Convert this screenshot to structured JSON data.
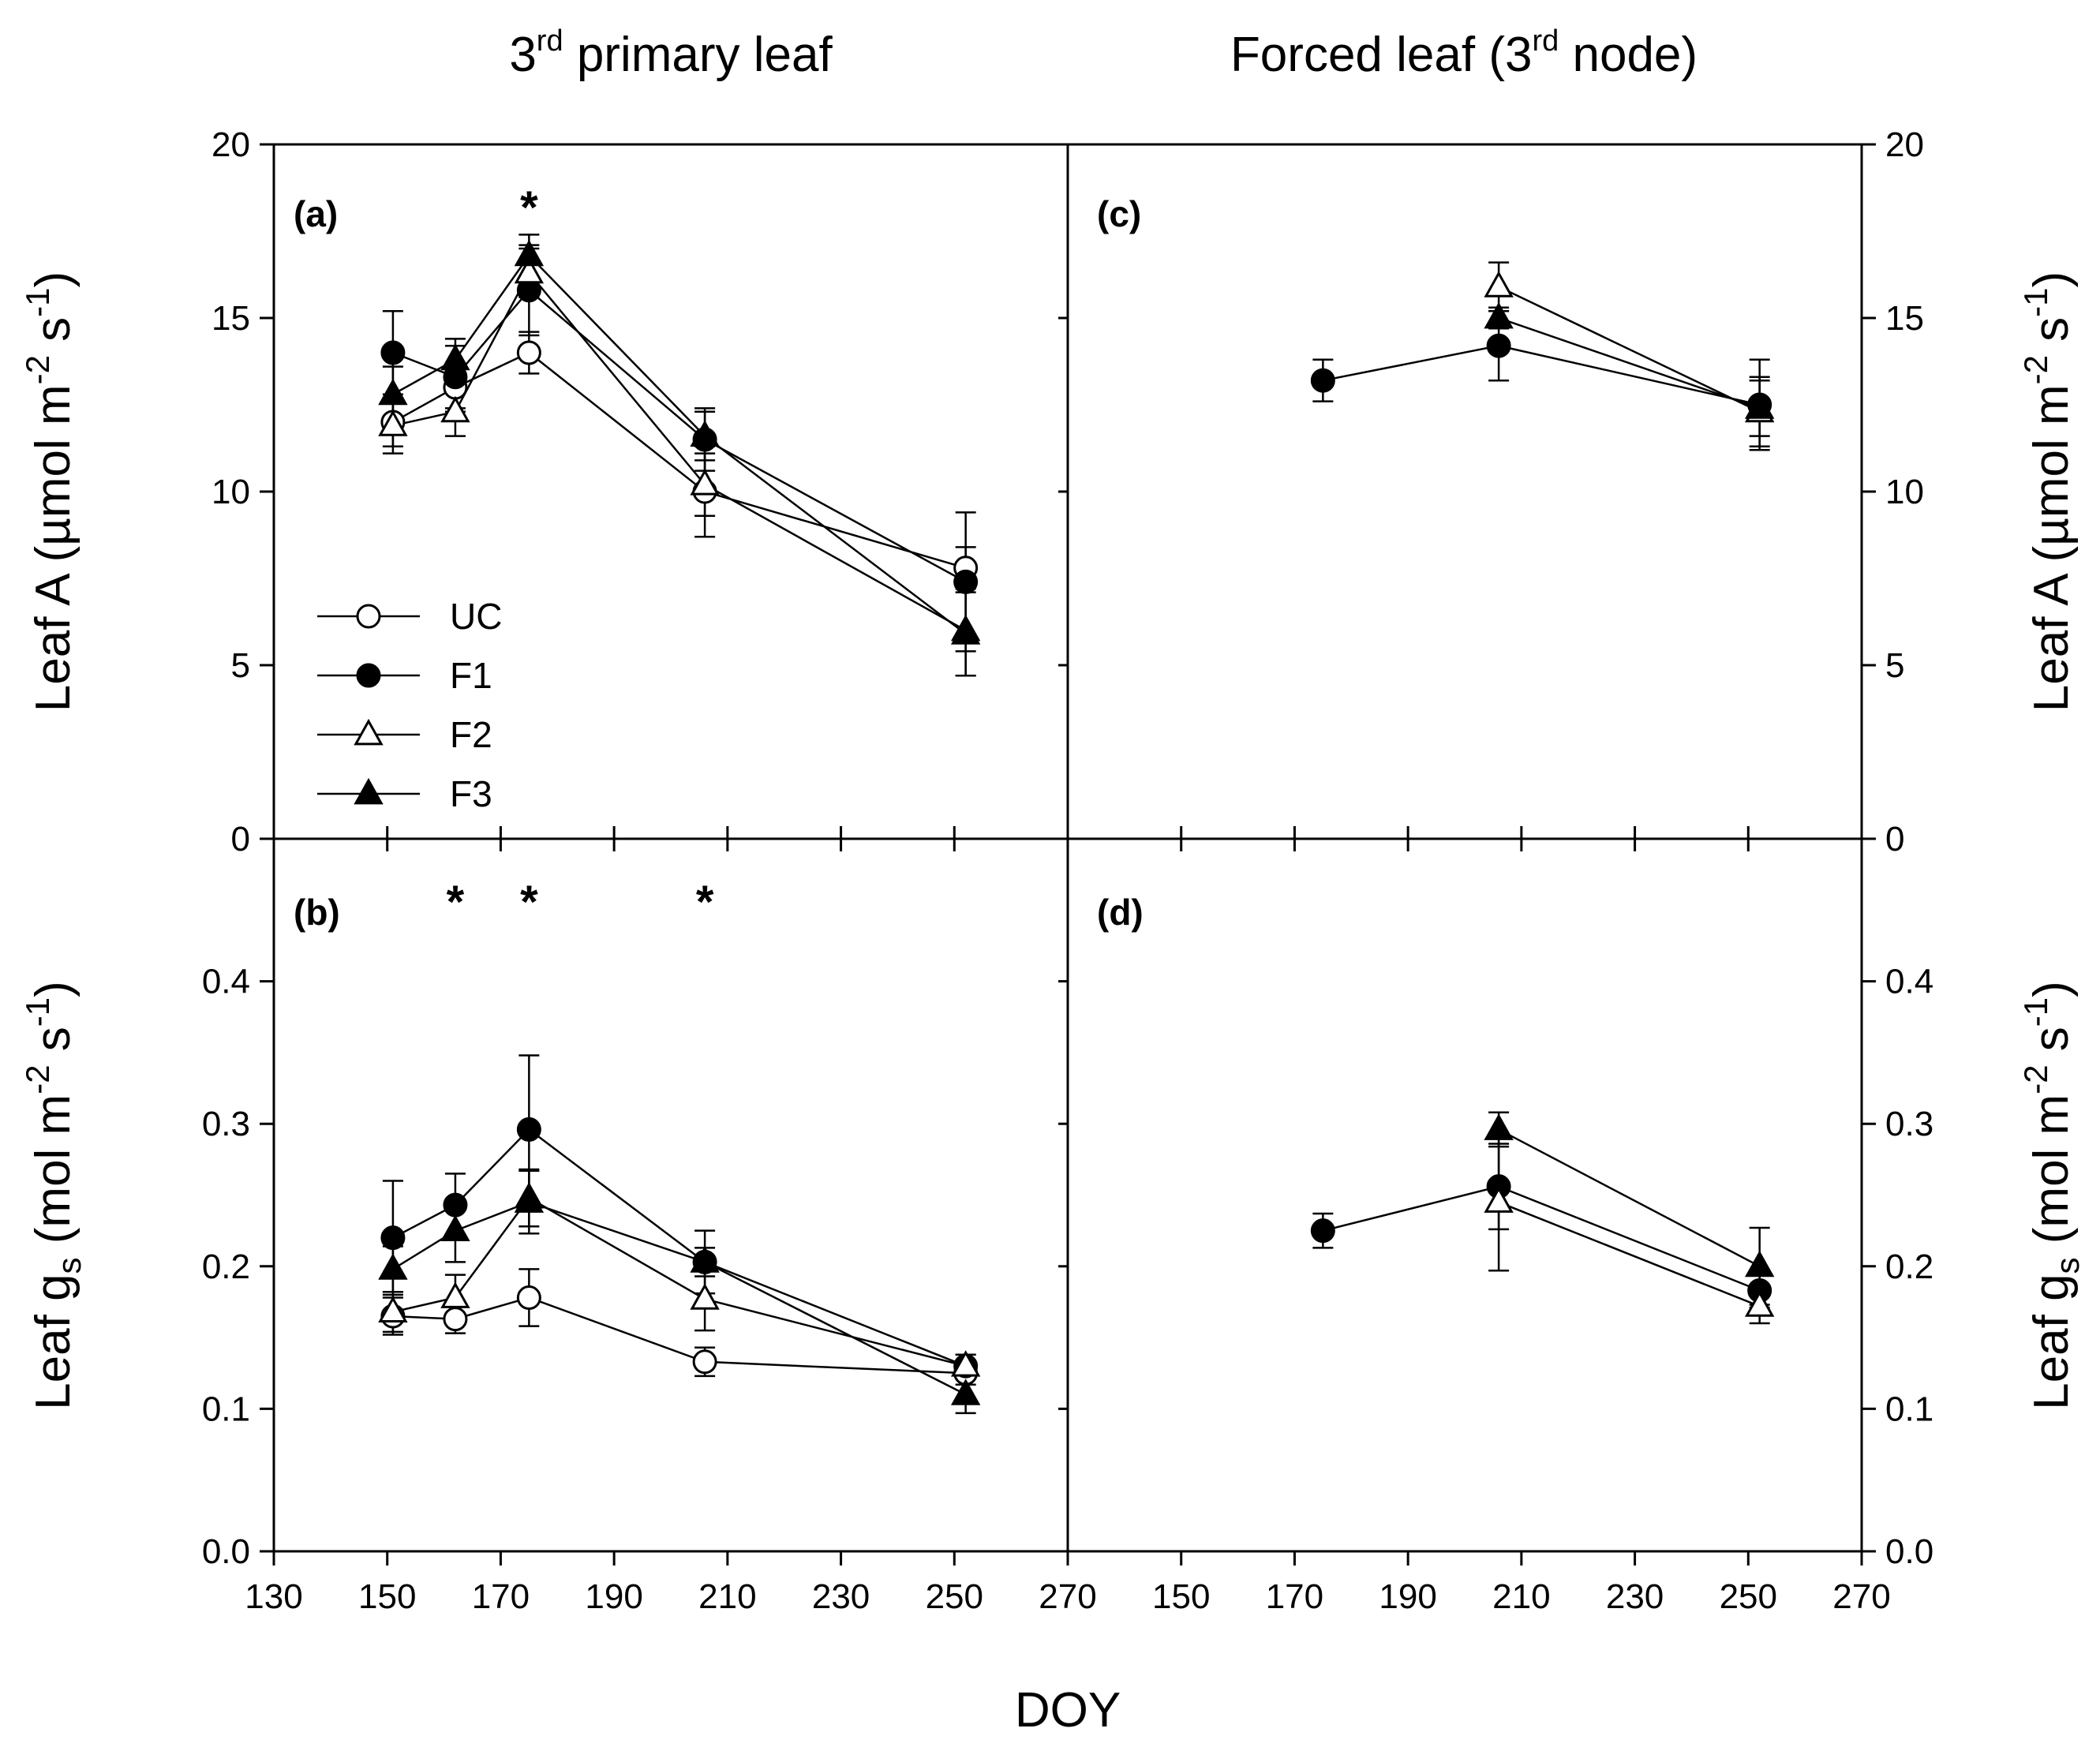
{
  "column_titles": {
    "left": {
      "pre": "3",
      "sup": "rd",
      "post": " primary leaf"
    },
    "right": {
      "pre": "Forced leaf (3",
      "sup": "rd",
      "post": " node)"
    }
  },
  "x_axis": {
    "label": "DOY",
    "left_ticks": [
      130,
      150,
      170,
      190,
      210,
      230,
      250,
      270
    ],
    "right_ticks": [
      150,
      170,
      190,
      210,
      230,
      250,
      270
    ],
    "range_left": [
      130,
      270
    ],
    "range_right": [
      130,
      270
    ]
  },
  "y_axis_A": {
    "label_pre": "Leaf A (µmol m",
    "sup1": "-2",
    "mid": " s",
    "sup2": "-1",
    "post": ")",
    "ticks": [
      "0",
      "5",
      "10",
      "15",
      "20"
    ],
    "range": [
      0,
      20
    ]
  },
  "y_axis_gs": {
    "label_pre": "Leaf g",
    "sub": "s",
    "mid1": " (mol m",
    "sup1": "-2",
    "mid2": " s",
    "sup2": "-1",
    "post": ")",
    "ticks": [
      "0.0",
      "0.1",
      "0.2",
      "0.3",
      "0.4"
    ],
    "range": [
      0,
      0.5
    ]
  },
  "legend": [
    {
      "name": "UC",
      "marker": "circle",
      "fill": "#ffffff"
    },
    {
      "name": "F1",
      "marker": "circle",
      "fill": "#000000"
    },
    {
      "name": "F2",
      "marker": "triangle",
      "fill": "#ffffff"
    },
    {
      "name": "F3",
      "marker": "triangle",
      "fill": "#000000"
    }
  ],
  "chart_data": [
    {
      "panel": "(a)",
      "type": "line",
      "xlabel": "DOY",
      "ylabel": "Leaf A",
      "xlim": [
        130,
        270
      ],
      "ylim": [
        0,
        20
      ],
      "significance_x": [
        175
      ],
      "series": [
        {
          "name": "UC",
          "x": [
            151,
            162,
            175,
            206,
            252
          ],
          "y": [
            12.0,
            13.0,
            14.0,
            10.0,
            7.8
          ],
          "err": [
            0.7,
            0.7,
            0.6,
            1.3,
            0.6
          ]
        },
        {
          "name": "F1",
          "x": [
            151,
            162,
            175,
            206,
            252
          ],
          "y": [
            14.0,
            13.3,
            15.8,
            11.5,
            7.4
          ],
          "err": [
            1.2,
            0.9,
            1.3,
            0.9,
            2.0
          ]
        },
        {
          "name": "F2",
          "x": [
            151,
            162,
            175,
            206,
            252
          ],
          "y": [
            11.9,
            12.3,
            16.3,
            10.2,
            6.0
          ],
          "err": [
            0.8,
            0.7,
            0.7,
            0.9,
            1.3
          ]
        },
        {
          "name": "F3",
          "x": [
            151,
            162,
            175,
            206,
            252
          ],
          "y": [
            12.8,
            13.8,
            16.8,
            11.6,
            5.9
          ],
          "err": [
            0.8,
            0.6,
            0.6,
            0.7,
            1.2
          ]
        }
      ]
    },
    {
      "panel": "(b)",
      "type": "line",
      "xlabel": "DOY",
      "ylabel": "Leaf gs",
      "xlim": [
        130,
        270
      ],
      "ylim": [
        0,
        0.5
      ],
      "significance_x": [
        162,
        175,
        206
      ],
      "series": [
        {
          "name": "UC",
          "x": [
            151,
            162,
            175,
            206,
            252
          ],
          "y": [
            0.165,
            0.163,
            0.178,
            0.133,
            0.125
          ],
          "err": [
            0.013,
            0.01,
            0.02,
            0.01,
            0.008
          ]
        },
        {
          "name": "F1",
          "x": [
            151,
            162,
            175,
            206,
            252
          ],
          "y": [
            0.22,
            0.243,
            0.296,
            0.203,
            0.13
          ],
          "err": [
            0.04,
            0.022,
            0.052,
            0.022,
            0.008
          ]
        },
        {
          "name": "F2",
          "x": [
            151,
            162,
            175,
            206,
            252
          ],
          "y": [
            0.168,
            0.178,
            0.248,
            0.177,
            0.13
          ],
          "err": [
            0.014,
            0.016,
            0.02,
            0.022,
            0.008
          ]
        },
        {
          "name": "F3",
          "x": [
            151,
            162,
            175,
            206,
            252
          ],
          "y": [
            0.198,
            0.225,
            0.245,
            0.203,
            0.11
          ],
          "err": [
            0.016,
            0.022,
            0.022,
            0.01,
            0.013
          ]
        }
      ]
    },
    {
      "panel": "(c)",
      "type": "line",
      "xlabel": "DOY",
      "ylabel": "Leaf A",
      "xlim": [
        130,
        270
      ],
      "ylim": [
        0,
        20
      ],
      "significance_x": [],
      "series": [
        {
          "name": "F1",
          "x": [
            175,
            206,
            252
          ],
          "y": [
            13.2,
            14.2,
            12.5
          ],
          "err": [
            0.6,
            1.0,
            1.3
          ]
        },
        {
          "name": "F2",
          "x": [
            206,
            252
          ],
          "y": [
            15.9,
            12.3
          ],
          "err": [
            0.7,
            1.0
          ]
        },
        {
          "name": "F3",
          "x": [
            206,
            252
          ],
          "y": [
            15.0,
            12.4
          ],
          "err": [
            0.3,
            0.8
          ]
        }
      ]
    },
    {
      "panel": "(d)",
      "type": "line",
      "xlabel": "DOY",
      "ylabel": "Leaf gs",
      "xlim": [
        130,
        270
      ],
      "ylim": [
        0,
        0.5
      ],
      "significance_x": [],
      "series": [
        {
          "name": "F1",
          "x": [
            175,
            206,
            252
          ],
          "y": [
            0.225,
            0.256,
            0.183
          ],
          "err": [
            0.012,
            0.03,
            0.012
          ]
        },
        {
          "name": "F2",
          "x": [
            206,
            252
          ],
          "y": [
            0.245,
            0.172
          ],
          "err": [
            0.048,
            0.012
          ]
        },
        {
          "name": "F3",
          "x": [
            206,
            252
          ],
          "y": [
            0.296,
            0.2
          ],
          "err": [
            0.012,
            0.027
          ]
        }
      ]
    }
  ]
}
